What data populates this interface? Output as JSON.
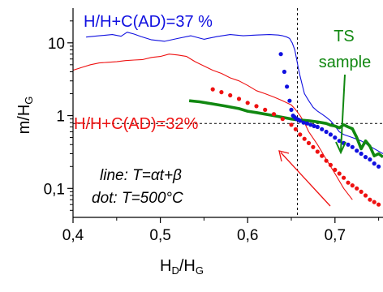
{
  "chart_data": {
    "type": "scatter",
    "xlabel": {
      "main": "H",
      "sub1": "D",
      "sep": "/H",
      "sub2": "G"
    },
    "ylabel": {
      "main": "m/H",
      "sub": "G"
    },
    "xlim": [
      0.4,
      0.755
    ],
    "ylim": [
      0.04,
      30
    ],
    "yscale": "log",
    "xticks": [
      0.4,
      0.5,
      0.6,
      0.7
    ],
    "xtick_labels": [
      "0,4",
      "0,5",
      "0,6",
      "0,7"
    ],
    "yticks": [
      0.1,
      1,
      10
    ],
    "ytick_labels": [
      "0,1",
      "1",
      "10"
    ],
    "reference_lines": {
      "vertical_x": 0.657,
      "horizontal_y": 0.78
    },
    "colors": {
      "blue": "#1010e0",
      "red": "#ee1111",
      "green": "#118811",
      "axis": "#000000"
    },
    "annotations": {
      "blue_label": "H/H+C(AD)=37 %",
      "red_label": "H/H+C(AD)=32%",
      "ts_line1": "TS",
      "ts_line2": "sample",
      "line_note_prefix": "line: ",
      "line_note_expr": "T=αt+β",
      "dot_note_prefix": "dot: ",
      "dot_note_expr": "T=500°C"
    },
    "series": [
      {
        "kind": "line",
        "color": "blue",
        "x": [
          0.415,
          0.43,
          0.445,
          0.455,
          0.462,
          0.47,
          0.478,
          0.49,
          0.505,
          0.52,
          0.535,
          0.55,
          0.565,
          0.58,
          0.595,
          0.61,
          0.625,
          0.635,
          0.64,
          0.645,
          0.648,
          0.651,
          0.654,
          0.656,
          0.658,
          0.66,
          0.662,
          0.665,
          0.67,
          0.675,
          0.68,
          0.685,
          0.69,
          0.695,
          0.7,
          0.705,
          0.71,
          0.72,
          0.73,
          0.74,
          0.755
        ],
        "y": [
          12,
          12.5,
          13,
          12.3,
          14,
          13.2,
          12.2,
          11,
          10.5,
          11.5,
          12.5,
          11.2,
          12.2,
          13,
          12.5,
          12.8,
          13,
          12.8,
          12.5,
          12,
          11.5,
          10,
          8,
          6,
          4.5,
          3.5,
          2.8,
          2,
          1.6,
          1.3,
          1.15,
          1.05,
          0.95,
          0.85,
          0.72,
          0.6,
          0.55,
          0.5,
          0.45,
          0.38,
          0.3
        ]
      },
      {
        "kind": "line",
        "color": "red",
        "x": [
          0.4,
          0.41,
          0.42,
          0.43,
          0.44,
          0.45,
          0.46,
          0.47,
          0.48,
          0.49,
          0.5,
          0.51,
          0.52,
          0.53,
          0.54,
          0.55,
          0.56,
          0.57,
          0.58,
          0.59,
          0.6,
          0.61,
          0.62,
          0.63,
          0.64,
          0.65,
          0.655,
          0.66,
          0.665,
          0.67,
          0.68,
          0.69,
          0.7,
          0.71,
          0.72
        ],
        "y": [
          4.2,
          4.6,
          5,
          5.3,
          5.4,
          5.5,
          5.7,
          5.8,
          5.9,
          6.3,
          6.5,
          7,
          6.8,
          6.5,
          5.5,
          4.8,
          4.2,
          3.8,
          3.3,
          3,
          2.6,
          2.2,
          2,
          1.8,
          1.6,
          1.4,
          1.2,
          1,
          0.8,
          0.6,
          0.4,
          0.25,
          0.16,
          0.1,
          0.07
        ]
      },
      {
        "kind": "line",
        "color": "green",
        "x": [
          0.533,
          0.545,
          0.56,
          0.575,
          0.59,
          0.6,
          0.61,
          0.62,
          0.63,
          0.64,
          0.65,
          0.655,
          0.66,
          0.665,
          0.67,
          0.68,
          0.69,
          0.695,
          0.7,
          0.705,
          0.71,
          0.715,
          0.72,
          0.725,
          0.73,
          0.735,
          0.74,
          0.745,
          0.75,
          0.755
        ],
        "y": [
          1.6,
          1.55,
          1.45,
          1.35,
          1.25,
          1.15,
          1.1,
          1.05,
          1,
          0.95,
          0.9,
          0.88,
          0.87,
          0.86,
          0.85,
          0.82,
          0.78,
          0.74,
          0.72,
          0.68,
          0.75,
          0.7,
          0.66,
          0.5,
          0.35,
          0.45,
          0.38,
          0.28,
          0.3,
          0.27
        ]
      },
      {
        "kind": "dots",
        "color": "blue",
        "x": [
          0.638,
          0.642,
          0.645,
          0.648,
          0.65,
          0.652,
          0.654,
          0.656,
          0.658,
          0.66,
          0.664,
          0.668,
          0.672,
          0.676,
          0.68,
          0.685,
          0.69,
          0.695,
          0.7,
          0.705,
          0.71,
          0.715,
          0.72,
          0.725,
          0.73,
          0.735,
          0.74,
          0.745,
          0.75
        ],
        "y": [
          7,
          4,
          2.5,
          1.6,
          1.2,
          1.0,
          0.95,
          0.9,
          0.88,
          0.85,
          0.8,
          0.78,
          0.75,
          0.72,
          0.7,
          0.65,
          0.6,
          0.55,
          0.5,
          0.45,
          0.42,
          0.4,
          0.37,
          0.33,
          0.3,
          0.27,
          0.25,
          0.22,
          0.2
        ]
      },
      {
        "kind": "dots",
        "color": "red",
        "x": [
          0.56,
          0.57,
          0.58,
          0.59,
          0.6,
          0.61,
          0.62,
          0.63,
          0.64,
          0.65,
          0.655,
          0.66,
          0.665,
          0.67,
          0.675,
          0.68,
          0.685,
          0.69,
          0.695,
          0.7,
          0.705,
          0.71,
          0.715,
          0.72,
          0.725,
          0.73,
          0.735,
          0.74,
          0.745,
          0.75
        ],
        "y": [
          2.3,
          2.1,
          1.9,
          1.7,
          1.5,
          1.35,
          1.2,
          1.05,
          0.9,
          0.75,
          0.65,
          0.55,
          0.48,
          0.42,
          0.37,
          0.32,
          0.28,
          0.24,
          0.21,
          0.18,
          0.16,
          0.14,
          0.12,
          0.11,
          0.1,
          0.09,
          0.08,
          0.07,
          0.065,
          0.06
        ]
      }
    ]
  }
}
